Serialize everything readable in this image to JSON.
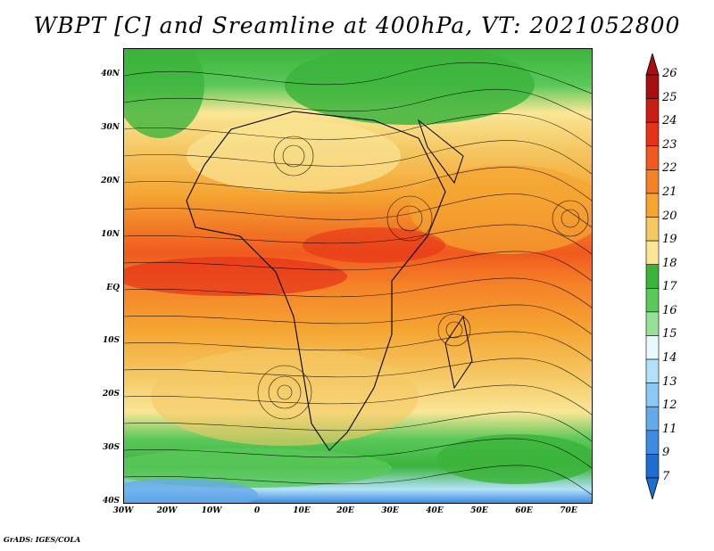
{
  "title": "WBPT [C] and Sreamline at 400hPa, VT: 2021052800",
  "footer": "GrADS: IGES/COLA",
  "latitude_ticks": [
    "40N",
    "30N",
    "20N",
    "10N",
    "EQ",
    "10S",
    "20S",
    "30S",
    "40S"
  ],
  "longitude_ticks": [
    "30W",
    "20W",
    "10W",
    "0",
    "10E",
    "20E",
    "30E",
    "40E",
    "50E",
    "60E",
    "70E"
  ],
  "colorbar": {
    "labels": [
      "26",
      "25",
      "24",
      "23",
      "22",
      "21",
      "20",
      "19",
      "18",
      "17",
      "16",
      "15",
      "14",
      "13",
      "12",
      "11",
      "9",
      "7"
    ],
    "colors": [
      "#a50f0f",
      "#c81e14",
      "#e63219",
      "#f05a1e",
      "#f58228",
      "#f5a532",
      "#f5c864",
      "#fae696",
      "#3cb43c",
      "#5ac85a",
      "#96e196",
      "#e6faff",
      "#b4e1fa",
      "#8cc8f5",
      "#64aaeb",
      "#3c8ce1",
      "#1e6ed2"
    ],
    "arrow_top_color": "#a50f0f",
    "arrow_bottom_color": "#1e6ed2"
  },
  "map": {
    "field": "WBPT",
    "units": "C",
    "level": "400hPa",
    "valid_time": "2021052800"
  }
}
